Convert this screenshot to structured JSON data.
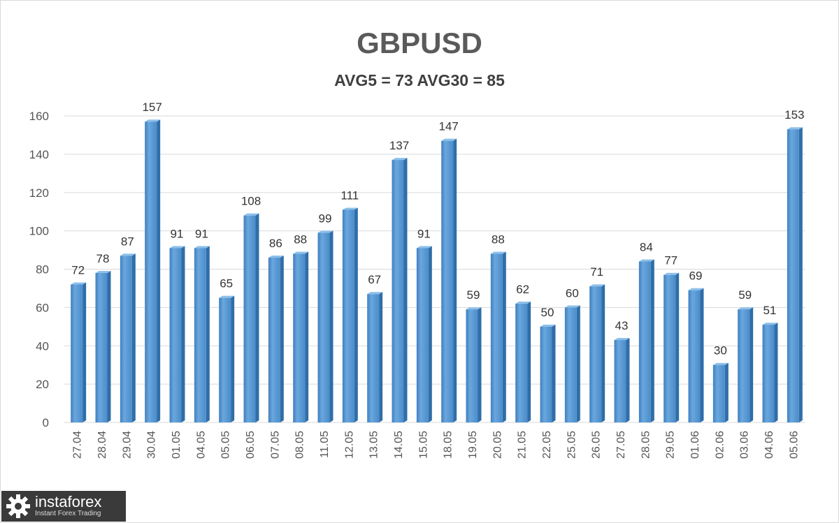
{
  "chart_data": {
    "type": "bar",
    "title": "GBPUSD",
    "subtitle": "AVG5 = 73 AVG30 = 85",
    "xlabel": "",
    "ylabel": "",
    "ylim": [
      0,
      160
    ],
    "yticks": [
      0,
      20,
      40,
      60,
      80,
      100,
      120,
      140,
      160
    ],
    "grid": true,
    "legend": "none",
    "bar_color": "#5b9bd5",
    "categories": [
      "27.04",
      "28.04",
      "29.04",
      "30.04",
      "01.05",
      "04.05",
      "05.05",
      "06.05",
      "07.05",
      "08.05",
      "11.05",
      "12.05",
      "13.05",
      "14.05",
      "15.05",
      "18.05",
      "19.05",
      "20.05",
      "21.05",
      "22.05",
      "25.05",
      "26.05",
      "27.05",
      "28.05",
      "29.05",
      "01.06",
      "02.06",
      "03.06",
      "04.06",
      "05.06"
    ],
    "values": [
      72,
      78,
      87,
      157,
      91,
      91,
      65,
      108,
      86,
      88,
      99,
      111,
      67,
      137,
      91,
      147,
      59,
      88,
      62,
      50,
      60,
      71,
      43,
      84,
      77,
      69,
      30,
      59,
      51,
      153
    ]
  },
  "watermark": {
    "brand": "instaforex",
    "tagline": "Instant Forex Trading",
    "icon": "gear-logo-icon"
  }
}
